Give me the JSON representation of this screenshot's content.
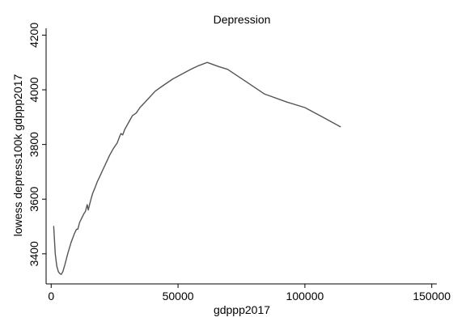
{
  "chart_data": {
    "type": "line",
    "title": "Depression",
    "xlabel": "gdppp2017",
    "ylabel": "lowess depress100k gdppp2017",
    "xlim": [
      -2000,
      152000
    ],
    "ylim": [
      3290,
      4225
    ],
    "xticks": [
      0,
      50000,
      100000,
      150000
    ],
    "xtick_labels": [
      "0",
      "50000",
      "100000",
      "150000"
    ],
    "yticks": [
      3400,
      3600,
      3800,
      4000,
      4200
    ],
    "ytick_labels": [
      "3400",
      "3600",
      "3800",
      "4000",
      "4200"
    ],
    "grid": false,
    "legend": "none",
    "line_color": "#555555",
    "series": [
      {
        "x": [
          1000,
          1600,
          2200,
          2800,
          3400,
          4000,
          4600,
          5400,
          6500,
          7800,
          9200,
          10000,
          10500,
          11200,
          12000,
          12800,
          13500,
          14200,
          14600,
          15000,
          15700,
          16300,
          17200,
          18200,
          19000,
          20000,
          21500,
          23000,
          24500,
          26000,
          27000,
          27500,
          28200,
          29000,
          30500,
          32000,
          33500,
          35000,
          38000,
          41000,
          44000,
          48000,
          51000,
          55000,
          58000,
          61500,
          66000,
          69500,
          76000,
          84000,
          93000,
          100000,
          107000,
          114000
        ],
        "y": [
          3500,
          3400,
          3355,
          3335,
          3328,
          3325,
          3335,
          3360,
          3400,
          3440,
          3475,
          3490,
          3490,
          3515,
          3530,
          3545,
          3555,
          3580,
          3560,
          3575,
          3600,
          3620,
          3640,
          3665,
          3680,
          3700,
          3730,
          3760,
          3785,
          3805,
          3830,
          3840,
          3835,
          3855,
          3880,
          3905,
          3915,
          3935,
          3965,
          3995,
          4015,
          4040,
          4055,
          4075,
          4088,
          4100,
          4085,
          4075,
          4035,
          3985,
          3955,
          3935,
          3900,
          3865
        ]
      }
    ]
  }
}
